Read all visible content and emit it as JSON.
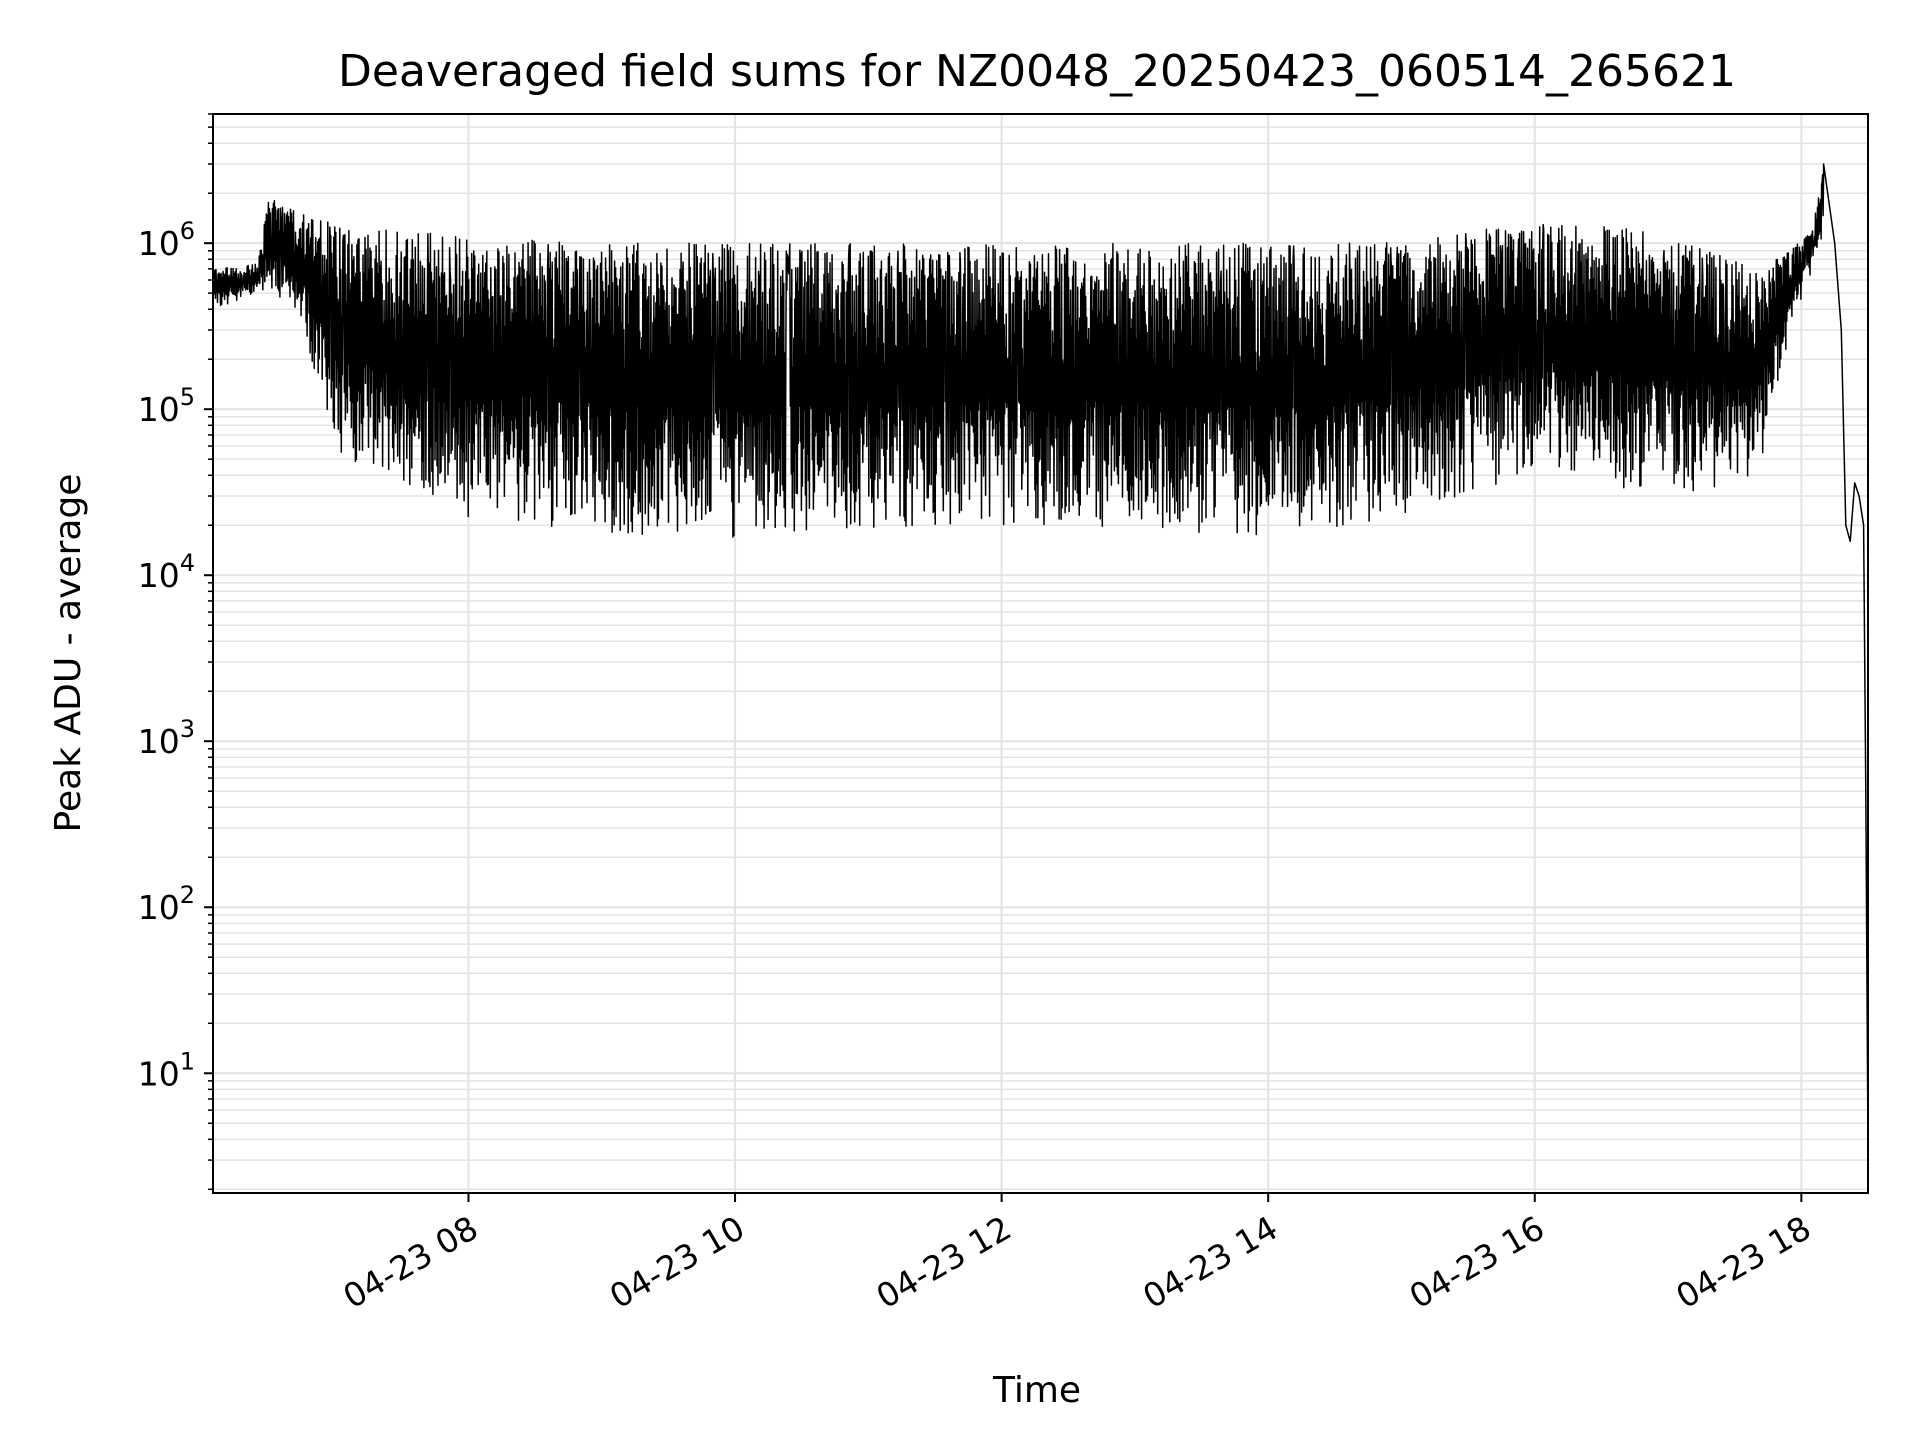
{
  "chart_data": {
    "type": "line",
    "title": "Deaveraged field sums for NZ0048_20250423_060514_265621",
    "xlabel": "Time",
    "ylabel": "Peak ADU - average",
    "y_scale": "log",
    "ylim": [
      1.9,
      6000000
    ],
    "xlim": [
      "2025-04-23 06:05",
      "2025-04-23 18:30"
    ],
    "grid": true,
    "line_color": "#000000",
    "grid_color": "#e3e3e3",
    "x_ticks": [
      {
        "value": "2025-04-23 08:00",
        "label": "04-23 08"
      },
      {
        "value": "2025-04-23 10:00",
        "label": "04-23 10"
      },
      {
        "value": "2025-04-23 12:00",
        "label": "04-23 12"
      },
      {
        "value": "2025-04-23 14:00",
        "label": "04-23 14"
      },
      {
        "value": "2025-04-23 16:00",
        "label": "04-23 16"
      },
      {
        "value": "2025-04-23 18:00",
        "label": "04-23 18"
      }
    ],
    "y_ticks": [
      {
        "value": 10,
        "base": "10",
        "exp": "1"
      },
      {
        "value": 100,
        "base": "10",
        "exp": "2"
      },
      {
        "value": 1000,
        "base": "10",
        "exp": "3"
      },
      {
        "value": 10000,
        "base": "10",
        "exp": "4"
      },
      {
        "value": 100000,
        "base": "10",
        "exp": "5"
      },
      {
        "value": 1000000,
        "base": "10",
        "exp": "6"
      }
    ],
    "series": [
      {
        "description": "dense oscillating signal; envelope given as time with upper and lower values",
        "envelope": [
          {
            "time": "2025-04-23 06:05",
            "upper": 700000,
            "lower": 400000
          },
          {
            "time": "2025-04-23 06:25",
            "upper": 750000,
            "lower": 500000
          },
          {
            "time": "2025-04-23 06:30",
            "upper": 1900000,
            "lower": 500000
          },
          {
            "time": "2025-04-23 06:45",
            "upper": 1500000,
            "lower": 300000
          },
          {
            "time": "2025-04-23 07:00",
            "upper": 1300000,
            "lower": 50000
          },
          {
            "time": "2025-04-23 07:30",
            "upper": 1200000,
            "lower": 30000
          },
          {
            "time": "2025-04-23 08:00",
            "upper": 1100000,
            "lower": 22000
          },
          {
            "time": "2025-04-23 09:00",
            "upper": 1000000,
            "lower": 18000
          },
          {
            "time": "2025-04-23 10:00",
            "upper": 1000000,
            "lower": 16000
          },
          {
            "time": "2025-04-23 11:00",
            "upper": 1000000,
            "lower": 18000
          },
          {
            "time": "2025-04-23 12:00",
            "upper": 1000000,
            "lower": 19000
          },
          {
            "time": "2025-04-23 13:00",
            "upper": 1000000,
            "lower": 19000
          },
          {
            "time": "2025-04-23 14:00",
            "upper": 1000000,
            "lower": 17000
          },
          {
            "time": "2025-04-23 14:45",
            "upper": 1000000,
            "lower": 20000
          },
          {
            "time": "2025-04-23 15:30",
            "upper": 1200000,
            "lower": 30000
          },
          {
            "time": "2025-04-23 16:00",
            "upper": 1400000,
            "lower": 40000
          },
          {
            "time": "2025-04-23 16:30",
            "upper": 1300000,
            "lower": 35000
          },
          {
            "time": "2025-04-23 17:00",
            "upper": 1100000,
            "lower": 30000
          },
          {
            "time": "2025-04-23 17:40",
            "upper": 700000,
            "lower": 35000
          },
          {
            "time": "2025-04-23 17:55",
            "upper": 900000,
            "lower": 300000
          },
          {
            "time": "2025-04-23 18:05",
            "upper": 1200000,
            "lower": 700000
          },
          {
            "time": "2025-04-23 18:10",
            "upper": 3000000,
            "lower": 900000
          }
        ],
        "tail": [
          {
            "time": "2025-04-23 18:10",
            "value": 3000000
          },
          {
            "time": "2025-04-23 18:15",
            "value": 1000000
          },
          {
            "time": "2025-04-23 18:18",
            "value": 300000
          },
          {
            "time": "2025-04-23 18:20",
            "value": 20000
          },
          {
            "time": "2025-04-23 18:22",
            "value": 16000
          },
          {
            "time": "2025-04-23 18:24",
            "value": 36000
          },
          {
            "time": "2025-04-23 18:26",
            "value": 30000
          },
          {
            "time": "2025-04-23 18:28",
            "value": 20000
          },
          {
            "time": "2025-04-23 18:29",
            "value": 500
          },
          {
            "time": "2025-04-23 18:30",
            "value": 3.5
          }
        ]
      }
    ]
  }
}
